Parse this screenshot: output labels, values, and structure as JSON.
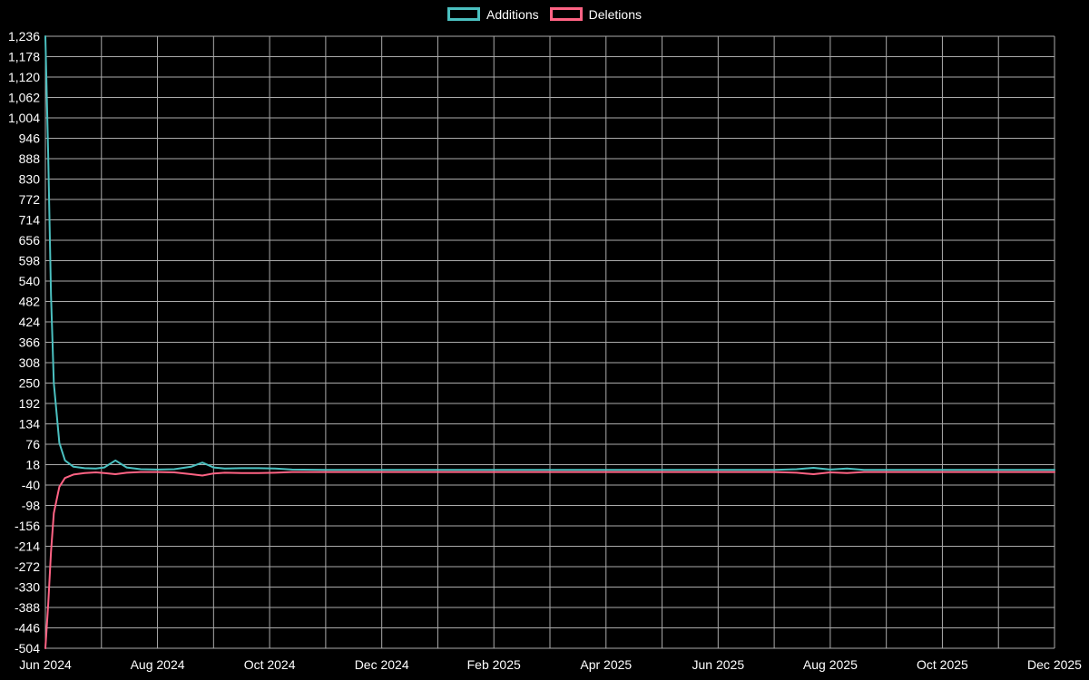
{
  "page": {
    "background": "#000000"
  },
  "legend": {
    "items": [
      {
        "label": "Additions",
        "color": "#4bc0c0"
      },
      {
        "label": "Deletions",
        "color": "#ff6384"
      }
    ]
  },
  "chart_data": {
    "type": "line",
    "title": "",
    "xlabel": "",
    "ylabel": "",
    "grid": true,
    "legend_position": "top-center",
    "background": "#000000",
    "grid_color": "#c9c9c9",
    "tick_color": "#ffffff",
    "xlim": [
      0,
      18
    ],
    "ylim": [
      -504,
      1236
    ],
    "x_month_count": 19,
    "x_tick_positions": [
      0,
      2,
      4,
      6,
      8,
      10,
      12,
      14,
      16,
      18
    ],
    "x_tick_labels": [
      "Jun 2024",
      "Aug 2024",
      "Oct 2024",
      "Dec 2024",
      "Feb 2025",
      "Apr 2025",
      "Jun 2025",
      "Aug 2025",
      "Oct 2025",
      "Dec 2025"
    ],
    "y_ticks": [
      1236,
      1178,
      1120,
      1062,
      1004,
      946,
      888,
      830,
      772,
      714,
      656,
      598,
      540,
      482,
      424,
      366,
      308,
      250,
      192,
      134,
      76,
      18,
      -40,
      -98,
      -156,
      -214,
      -272,
      -330,
      -388,
      -446,
      -504
    ],
    "series": [
      {
        "name": "Additions",
        "color": "#4bc0c0",
        "points": [
          [
            0,
            1236
          ],
          [
            0.05,
            900
          ],
          [
            0.1,
            500
          ],
          [
            0.15,
            250
          ],
          [
            0.25,
            80
          ],
          [
            0.35,
            30
          ],
          [
            0.5,
            12
          ],
          [
            0.7,
            8
          ],
          [
            0.9,
            7
          ],
          [
            1.05,
            10
          ],
          [
            1.25,
            30
          ],
          [
            1.45,
            10
          ],
          [
            1.7,
            5
          ],
          [
            2.0,
            4
          ],
          [
            2.3,
            5
          ],
          [
            2.6,
            12
          ],
          [
            2.8,
            24
          ],
          [
            3.0,
            10
          ],
          [
            3.2,
            7
          ],
          [
            3.5,
            8
          ],
          [
            3.8,
            8
          ],
          [
            4.1,
            7
          ],
          [
            4.4,
            4
          ],
          [
            5,
            3
          ],
          [
            6,
            3
          ],
          [
            7,
            3
          ],
          [
            8,
            3
          ],
          [
            9,
            3
          ],
          [
            10,
            3
          ],
          [
            11,
            3
          ],
          [
            12,
            3
          ],
          [
            13,
            3
          ],
          [
            13.4,
            5
          ],
          [
            13.7,
            9
          ],
          [
            14.0,
            4
          ],
          [
            14.3,
            7
          ],
          [
            14.6,
            3
          ],
          [
            15,
            3
          ],
          [
            16,
            3
          ],
          [
            17,
            3
          ],
          [
            18,
            3
          ]
        ]
      },
      {
        "name": "Deletions",
        "color": "#ff6384",
        "points": [
          [
            0,
            -504
          ],
          [
            0.05,
            -380
          ],
          [
            0.1,
            -230
          ],
          [
            0.15,
            -120
          ],
          [
            0.25,
            -45
          ],
          [
            0.35,
            -20
          ],
          [
            0.5,
            -10
          ],
          [
            0.7,
            -6
          ],
          [
            0.9,
            -4
          ],
          [
            1.05,
            -6
          ],
          [
            1.25,
            -9
          ],
          [
            1.45,
            -5
          ],
          [
            1.7,
            -3
          ],
          [
            2.0,
            -3
          ],
          [
            2.3,
            -4
          ],
          [
            2.6,
            -9
          ],
          [
            2.8,
            -13
          ],
          [
            3.0,
            -7
          ],
          [
            3.2,
            -5
          ],
          [
            3.5,
            -6
          ],
          [
            3.8,
            -6
          ],
          [
            4.1,
            -5
          ],
          [
            4.4,
            -3
          ],
          [
            5,
            -3
          ],
          [
            6,
            -3
          ],
          [
            7,
            -3
          ],
          [
            8,
            -3
          ],
          [
            9,
            -3
          ],
          [
            10,
            -3
          ],
          [
            11,
            -3
          ],
          [
            12,
            -3
          ],
          [
            13,
            -3
          ],
          [
            13.4,
            -5
          ],
          [
            13.7,
            -9
          ],
          [
            14.0,
            -4
          ],
          [
            14.3,
            -6
          ],
          [
            14.6,
            -3
          ],
          [
            15,
            -3
          ],
          [
            16,
            -3
          ],
          [
            17,
            -3
          ],
          [
            18,
            -3
          ]
        ]
      }
    ]
  }
}
